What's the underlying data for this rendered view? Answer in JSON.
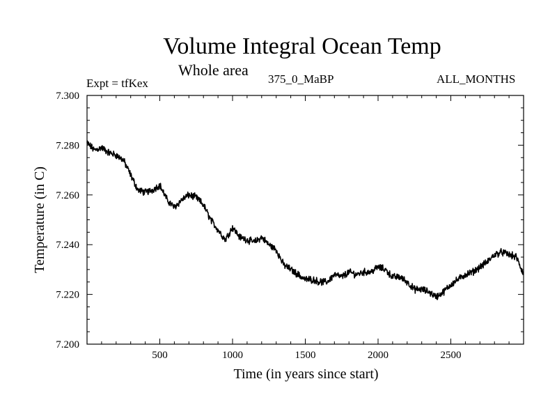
{
  "header": {
    "title": "Volume Integral Ocean Temp",
    "subtitle": "Whole area",
    "expt_label": "Expt = tfKex",
    "period_label": "375_0_MaBP",
    "months_label": "ALL_MONTHS"
  },
  "chart_data": {
    "type": "line",
    "xlabel": "Time (in years since start)",
    "ylabel": "Temperature (in C)",
    "xlim": [
      0,
      3000
    ],
    "ylim": [
      7.2,
      7.3
    ],
    "x_ticks": [
      500,
      1000,
      1500,
      2000,
      2500
    ],
    "y_ticks": [
      "7.200",
      "7.220",
      "7.240",
      "7.260",
      "7.280",
      "7.300"
    ],
    "grid": false,
    "color": "#000000",
    "series": [
      {
        "x": [
          0,
          50,
          100,
          150,
          200,
          250,
          300,
          350,
          400,
          450,
          500,
          550,
          600,
          650,
          700,
          750,
          800,
          850,
          900,
          950,
          1000,
          1050,
          1100,
          1150,
          1200,
          1250,
          1300,
          1350,
          1400,
          1450,
          1500,
          1550,
          1600,
          1650,
          1700,
          1750,
          1800,
          1850,
          1900,
          1950,
          2000,
          2050,
          2100,
          2150,
          2200,
          2250,
          2300,
          2350,
          2400,
          2450,
          2500,
          2550,
          2600,
          2650,
          2700,
          2750,
          2800,
          2850,
          2900,
          2950,
          3000
        ],
        "y": [
          7.281,
          7.278,
          7.279,
          7.277,
          7.276,
          7.274,
          7.268,
          7.262,
          7.261,
          7.262,
          7.264,
          7.258,
          7.255,
          7.258,
          7.26,
          7.259,
          7.256,
          7.25,
          7.246,
          7.242,
          7.247,
          7.243,
          7.242,
          7.241,
          7.243,
          7.24,
          7.238,
          7.232,
          7.23,
          7.228,
          7.226,
          7.226,
          7.225,
          7.225,
          7.228,
          7.227,
          7.229,
          7.228,
          7.229,
          7.229,
          7.231,
          7.23,
          7.227,
          7.227,
          7.225,
          7.222,
          7.222,
          7.221,
          7.219,
          7.221,
          7.224,
          7.226,
          7.228,
          7.229,
          7.231,
          7.233,
          7.236,
          7.237,
          7.236,
          7.235,
          7.228
        ]
      }
    ]
  }
}
